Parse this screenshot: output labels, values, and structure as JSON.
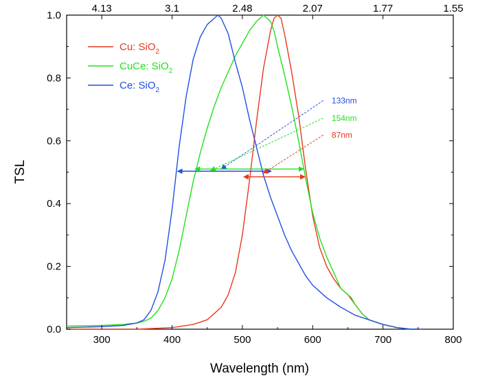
{
  "chart_data": {
    "type": "line",
    "xlabel": "Wavelength (nm)",
    "ylabel": "TSL",
    "xlim": [
      250,
      800
    ],
    "ylim": [
      0,
      1.0
    ],
    "x_ticks": [
      300,
      400,
      500,
      600,
      700,
      800
    ],
    "x_tick_labels": [
      "300",
      "400",
      "500",
      "600",
      "700",
      "800"
    ],
    "y_ticks": [
      0.0,
      0.2,
      0.4,
      0.6,
      0.8,
      1.0
    ],
    "y_tick_labels": [
      "0.0",
      "0.2",
      "0.4",
      "0.6",
      "0.8",
      "1.0"
    ],
    "top_axis": {
      "label": "",
      "ticks": [
        {
          "x": 300,
          "label": "4.13"
        },
        {
          "x": 400,
          "label": "3.1"
        },
        {
          "x": 500,
          "label": "2.48"
        },
        {
          "x": 600,
          "label": "2.07"
        },
        {
          "x": 700,
          "label": "1.77"
        },
        {
          "x": 800,
          "label": "1.55"
        }
      ]
    },
    "grid": false,
    "legend_position": "top-left",
    "series": [
      {
        "name": "Cu: SiO",
        "name_sub": "2",
        "color": "#e8371c",
        "x": [
          250,
          300,
          350,
          400,
          430,
          450,
          470,
          480,
          490,
          500,
          510,
          520,
          530,
          540,
          545,
          550,
          555,
          560,
          570,
          580,
          590,
          600,
          610,
          620,
          630,
          640,
          650,
          660,
          670,
          680,
          700,
          720,
          740,
          750
        ],
        "y": [
          0.0,
          0.0,
          0.0,
          0.005,
          0.015,
          0.03,
          0.07,
          0.11,
          0.18,
          0.3,
          0.47,
          0.66,
          0.83,
          0.95,
          0.99,
          1.0,
          0.99,
          0.94,
          0.82,
          0.68,
          0.51,
          0.36,
          0.26,
          0.2,
          0.16,
          0.13,
          0.11,
          0.08,
          0.05,
          0.03,
          0.015,
          0.005,
          0.0,
          0.0
        ]
      },
      {
        "name": "CuCe: SiO",
        "name_sub": "2",
        "color": "#22e01e",
        "x": [
          250,
          300,
          330,
          350,
          360,
          370,
          380,
          390,
          400,
          410,
          420,
          430,
          440,
          450,
          460,
          470,
          480,
          490,
          500,
          510,
          520,
          530,
          540,
          545,
          550,
          560,
          570,
          580,
          590,
          600,
          610,
          620,
          630,
          640,
          650,
          655,
          660,
          670,
          680,
          700,
          720,
          740,
          750
        ],
        "y": [
          0.01,
          0.012,
          0.015,
          0.02,
          0.025,
          0.035,
          0.06,
          0.1,
          0.16,
          0.25,
          0.36,
          0.47,
          0.56,
          0.64,
          0.71,
          0.77,
          0.82,
          0.87,
          0.91,
          0.95,
          0.98,
          1.0,
          0.98,
          0.95,
          0.9,
          0.81,
          0.71,
          0.6,
          0.48,
          0.37,
          0.29,
          0.23,
          0.18,
          0.13,
          0.11,
          0.1,
          0.08,
          0.05,
          0.03,
          0.015,
          0.005,
          0.0,
          0.0
        ]
      },
      {
        "name": "Ce: SiO",
        "name_sub": "2",
        "color": "#1f4fe0",
        "x": [
          250,
          300,
          330,
          350,
          360,
          370,
          380,
          390,
          400,
          410,
          420,
          430,
          440,
          450,
          460,
          465,
          470,
          480,
          490,
          500,
          510,
          520,
          530,
          540,
          550,
          560,
          570,
          580,
          590,
          600,
          620,
          640,
          660,
          680,
          700,
          720,
          740,
          755
        ],
        "y": [
          0.005,
          0.008,
          0.012,
          0.02,
          0.03,
          0.06,
          0.12,
          0.22,
          0.38,
          0.58,
          0.74,
          0.86,
          0.93,
          0.97,
          0.99,
          1.0,
          0.99,
          0.94,
          0.85,
          0.77,
          0.67,
          0.58,
          0.49,
          0.42,
          0.36,
          0.3,
          0.25,
          0.21,
          0.17,
          0.14,
          0.1,
          0.07,
          0.045,
          0.03,
          0.015,
          0.005,
          0.0,
          0.0
        ]
      }
    ],
    "annotations": [
      {
        "text": "133nm",
        "color": "#1f4fe0",
        "text_x": 627,
        "text_y": 0.728,
        "from_x": 615,
        "from_y": 0.728,
        "to_x": 470,
        "to_y": 0.51,
        "fwhm_from": 408,
        "fwhm_to": 541,
        "fwhm_y": 0.503
      },
      {
        "text": "154nm",
        "color": "#22e01e",
        "text_x": 627,
        "text_y": 0.672,
        "from_x": 615,
        "from_y": 0.672,
        "to_x": 455,
        "to_y": 0.505,
        "fwhm_from": 433,
        "fwhm_to": 587,
        "fwhm_y": 0.51
      },
      {
        "text": "87nm",
        "color": "#e8371c",
        "text_x": 627,
        "text_y": 0.618,
        "from_x": 615,
        "from_y": 0.618,
        "to_x": 530,
        "to_y": 0.497,
        "fwhm_from": 502,
        "fwhm_to": 589,
        "fwhm_y": 0.485
      }
    ]
  }
}
